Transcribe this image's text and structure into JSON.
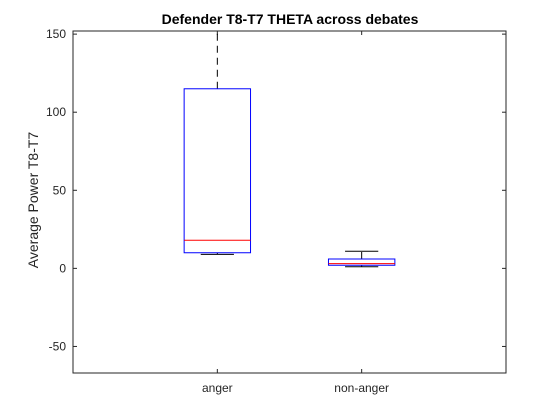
{
  "chart_data": {
    "type": "box",
    "title": "Defender T8-T7 THETA across debates",
    "xlabel": "",
    "ylabel": "Average Power T8-T7",
    "ylim": [
      -67,
      152
    ],
    "yticks": [
      -50,
      0,
      50,
      100,
      150
    ],
    "categories": [
      "anger",
      "non-anger"
    ],
    "boxes": [
      {
        "category": "anger",
        "lower_whisker": 9,
        "q1": 10,
        "median": 18,
        "q3": 115,
        "upper_whisker": 152
      },
      {
        "category": "non-anger",
        "lower_whisker": 1,
        "q1": 2,
        "median": 3,
        "q3": 6,
        "upper_whisker": 11
      }
    ],
    "grid": false,
    "colors": {
      "box": "#0000ff",
      "median": "#ff0000",
      "whisker": "#000000",
      "axes": "#262626"
    }
  }
}
